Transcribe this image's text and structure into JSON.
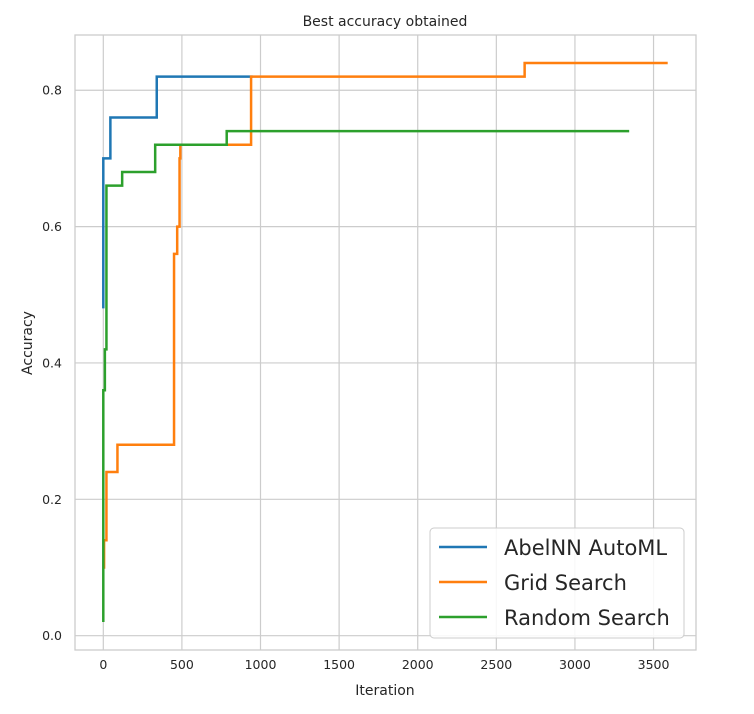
{
  "chart_data": {
    "type": "line",
    "title": "Best accuracy obtained",
    "xlabel": "Iteration",
    "ylabel": "Accuracy",
    "xlim": [
      -180,
      3770
    ],
    "ylim": [
      -0.021,
      0.881
    ],
    "xticks": [
      0,
      500,
      1000,
      1500,
      2000,
      2500,
      3000,
      3500
    ],
    "xtick_labels": [
      "0",
      "500",
      "1000",
      "1500",
      "2000",
      "2500",
      "3000",
      "3500"
    ],
    "yticks": [
      0.0,
      0.2,
      0.4,
      0.6,
      0.8
    ],
    "ytick_labels": [
      "0.0",
      "0.2",
      "0.4",
      "0.6",
      "0.8"
    ],
    "grid": true,
    "legend_position": "lower-right",
    "step": true,
    "series": [
      {
        "name": "AbelNN AutoML",
        "color": "#1f77b4",
        "x": [
          0,
          0,
          45,
          340,
          950
        ],
        "y": [
          0.48,
          0.7,
          0.76,
          0.82,
          0.82
        ]
      },
      {
        "name": "Grid Search",
        "color": "#ff7f0e",
        "x": [
          0,
          5,
          20,
          90,
          450,
          470,
          485,
          490,
          940,
          2680,
          3590
        ],
        "y": [
          0.1,
          0.14,
          0.24,
          0.28,
          0.56,
          0.6,
          0.7,
          0.72,
          0.82,
          0.84,
          0.84
        ]
      },
      {
        "name": "Random Search",
        "color": "#2ca02c",
        "x": [
          0,
          0,
          10,
          20,
          120,
          330,
          785,
          3345
        ],
        "y": [
          0.02,
          0.36,
          0.42,
          0.66,
          0.68,
          0.72,
          0.74,
          0.74
        ]
      }
    ]
  }
}
